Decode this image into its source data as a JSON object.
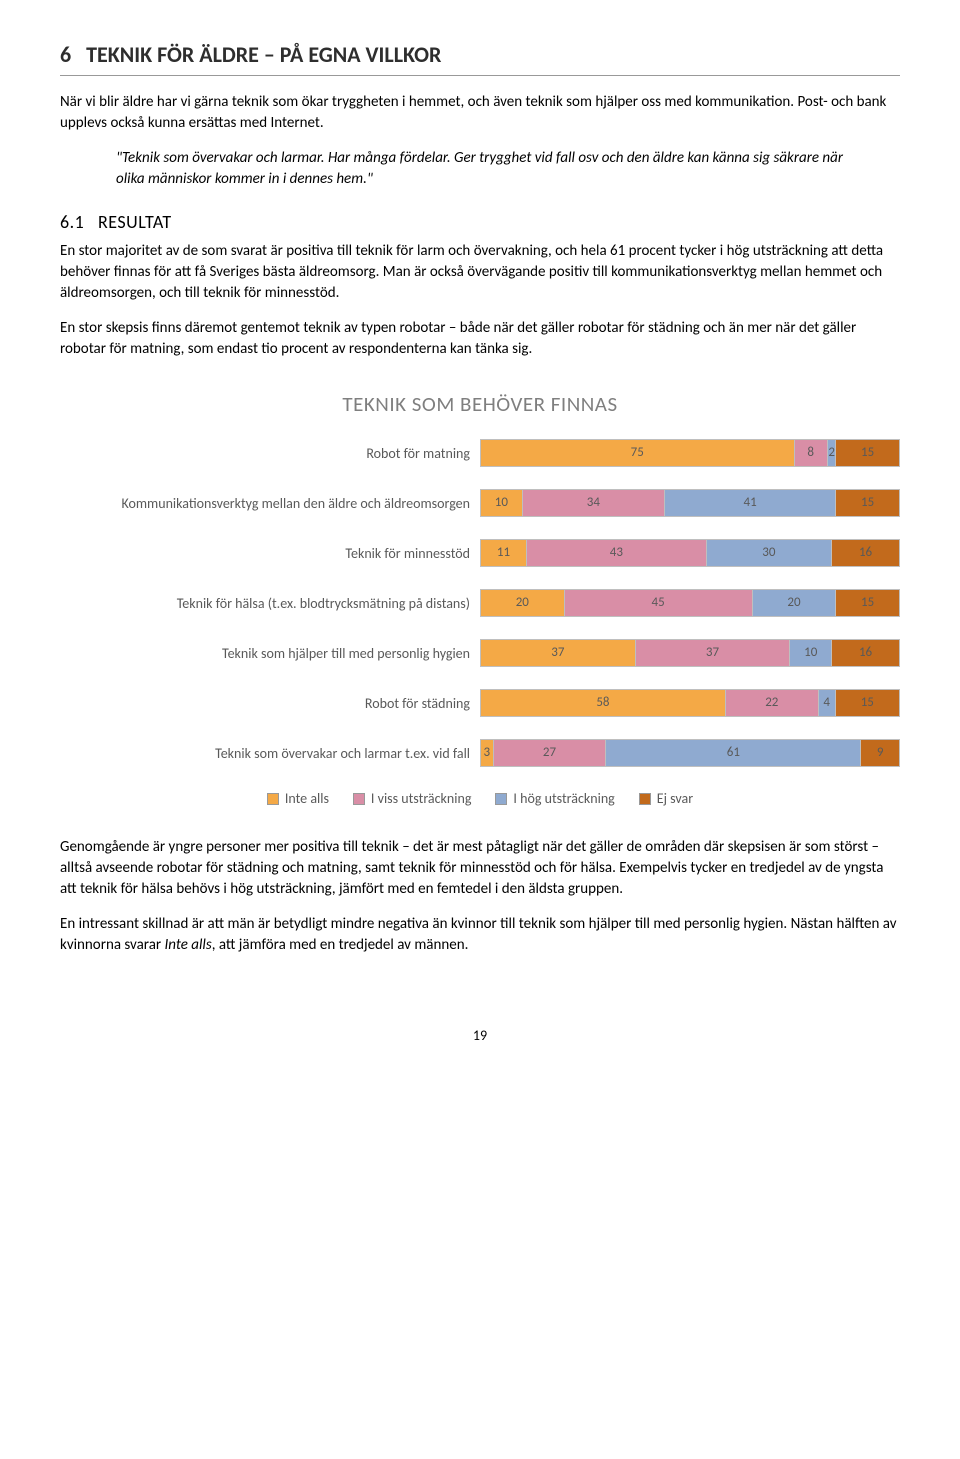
{
  "colors": {
    "orange": "#f4a946",
    "pink": "#d98ea6",
    "blue": "#8faad0",
    "brown": "#c26a1c"
  },
  "heading": {
    "num": "6",
    "text_sc": "T",
    "text_rest": "EKNIK FÖR ÄLDRE – PÅ EGNA VILLKOR"
  },
  "p1": "När vi blir äldre har vi gärna teknik som ökar tryggheten i hemmet, och även teknik som hjälper oss med kommunikation. Post- och bank upplevs också kunna ersättas med Internet.",
  "quote": "\"Teknik som övervakar och larmar. Har många fördelar. Ger trygghet vid fall osv och den äldre kan känna sig säkrare när olika människor kommer in i dennes hem.\"",
  "sub": {
    "num": "6.1",
    "text_sc": "R",
    "text_rest": "ESULTAT"
  },
  "p2": "En stor majoritet av de som svarat är positiva till teknik för larm och övervakning, och hela 61 procent tycker i hög utsträckning att detta behöver finnas för att få Sveriges bästa äldreomsorg. Man är också övervägande positiv till kommunikationsverktyg mellan hemmet och äldreomsorgen, och till teknik för minnesstöd.",
  "p3": "En stor skepsis finns däremot gentemot teknik av typen robotar – både när det gäller robotar för städning och än mer när det gäller robotar för matning, som endast tio procent av respondenterna kan tänka sig.",
  "chart": {
    "title": "TEKNIK SOM BEHÖVER FINNAS",
    "legend": [
      "Inte alls",
      "I viss utsträckning",
      "I hög utsträckning",
      "Ej svar"
    ],
    "rows": [
      {
        "label": "Robot för matning",
        "values": [
          75,
          8,
          2,
          15
        ]
      },
      {
        "label": "Kommunikationsverktyg mellan den äldre och äldreomsorgen",
        "values": [
          10,
          34,
          41,
          15
        ]
      },
      {
        "label": "Teknik för minnesstöd",
        "values": [
          11,
          43,
          30,
          16
        ]
      },
      {
        "label": "Teknik för hälsa (t.ex. blodtrycksmätning på distans)",
        "values": [
          20,
          45,
          20,
          15
        ]
      },
      {
        "label": "Teknik som hjälper till med personlig hygien",
        "values": [
          37,
          37,
          10,
          16
        ]
      },
      {
        "label": "Robot för städning",
        "values": [
          58,
          22,
          4,
          15
        ]
      },
      {
        "label": "Teknik som övervakar och larmar t.ex. vid fall",
        "values": [
          3,
          27,
          61,
          9
        ]
      }
    ]
  },
  "p4": "Genomgående är yngre personer mer positiva till teknik – det är mest påtagligt när det gäller de områden där skepsisen är som störst – alltså avseende robotar för städning och matning, samt teknik för minnesstöd och för hälsa. Exempelvis tycker en tredjedel av de yngsta att teknik för hälsa behövs i hög utsträckning, jämfört med en femtedel i den äldsta gruppen.",
  "p5a": "En intressant skillnad är att män är betydligt mindre negativa än kvinnor till teknik som hjälper till med personlig hygien. Nästan hälften av kvinnorna svarar ",
  "p5b": "Inte alls",
  "p5c": ", att jämföra med en tredjedel av männen.",
  "pagenum": "19"
}
